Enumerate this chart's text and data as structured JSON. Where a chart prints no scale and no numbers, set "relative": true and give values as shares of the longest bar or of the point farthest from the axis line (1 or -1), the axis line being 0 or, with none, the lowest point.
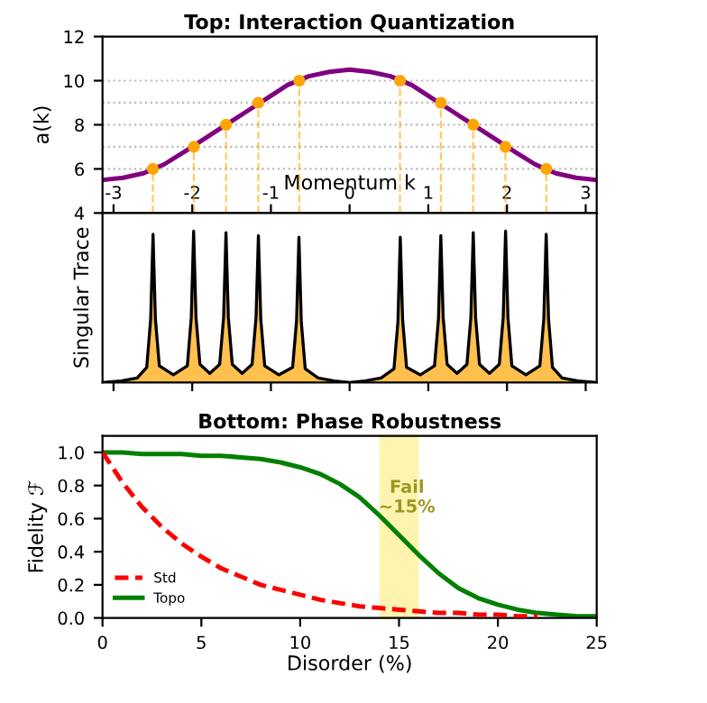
{
  "chart_data": [
    {
      "type": "line",
      "title": "Top: Interaction Quantization",
      "xlabel": "Momentum k",
      "ylabel": "a(k)",
      "xlim": [
        -3.14,
        3.14
      ],
      "xticks": [
        -3,
        -2,
        -1,
        0,
        1,
        2,
        3
      ],
      "ylim": [
        4,
        12
      ],
      "yticks": [
        4,
        6,
        8,
        10,
        12
      ],
      "ref_lines": [
        {
          "axis": "y",
          "value": 6,
          "color": "#bbbbbb",
          "line_style": "dotted"
        },
        {
          "axis": "y",
          "value": 7,
          "color": "#bbbbbb",
          "line_style": "dotted"
        },
        {
          "axis": "y",
          "value": 8,
          "color": "#bbbbbb",
          "line_style": "dotted"
        },
        {
          "axis": "y",
          "value": 9,
          "color": "#bbbbbb",
          "line_style": "dotted"
        },
        {
          "axis": "y",
          "value": 10,
          "color": "#bbbbbb",
          "line_style": "dotted"
        }
      ],
      "series": [
        {
          "color": "#800080",
          "x": [
            -3.14,
            -2.88,
            -2.62,
            -2.36,
            -2.09,
            -1.83,
            -1.57,
            -1.31,
            -1.05,
            -0.79,
            -0.52,
            -0.26,
            0,
            0.26,
            0.52,
            0.79,
            1.05,
            1.31,
            1.57,
            1.83,
            2.09,
            2.36,
            2.62,
            2.88,
            3.14
          ],
          "values": [
            5.5,
            5.6,
            5.8,
            6.2,
            6.8,
            7.4,
            8,
            8.6,
            9.2,
            9.8,
            10.2,
            10.4,
            10.5,
            10.4,
            10.2,
            9.8,
            9.2,
            8.6,
            8,
            7.4,
            6.8,
            6.2,
            5.8,
            5.6,
            5.5
          ]
        },
        {
          "type": "lollipop",
          "color": "#ffa500",
          "line_style": "dashed",
          "marker": "circle",
          "x": [
            -2.5,
            -1.98,
            -1.57,
            -1.16,
            -0.64,
            0.64,
            1.16,
            1.57,
            1.98,
            2.5
          ],
          "values": [
            6,
            7,
            8,
            9,
            10,
            10,
            9,
            8,
            7,
            6
          ]
        }
      ]
    },
    {
      "type": "area",
      "relative": true,
      "ylabel": "Singular Trace",
      "xlim": [
        -3.14,
        3.14
      ],
      "xticks": [
        -3,
        -2,
        -1,
        0,
        1,
        2,
        3
      ],
      "tick_labels": false,
      "series": [
        {
          "color": "#ffc04d",
          "x": [
            -3.14,
            -2.9,
            -2.7,
            -2.578,
            -2.528,
            -2.498,
            -2.468,
            -2.418,
            -2.24,
            -2.062,
            -2.012,
            -1.982,
            -1.952,
            -1.902,
            -1.777,
            -1.651,
            -1.601,
            -1.571,
            -1.541,
            -1.491,
            -1.365,
            -1.239,
            -1.189,
            -1.159,
            -1.129,
            -1.079,
            -0.9,
            -0.724,
            -0.674,
            -0.644,
            -0.614,
            -0.564,
            -0.4,
            -0.2,
            0,
            0.2,
            0.4,
            0.564,
            0.614,
            0.644,
            0.674,
            0.724,
            0.9,
            1.079,
            1.129,
            1.159,
            1.189,
            1.239,
            1.365,
            1.491,
            1.541,
            1.571,
            1.601,
            1.651,
            1.777,
            1.902,
            1.952,
            1.982,
            2.012,
            2.062,
            2.24,
            2.418,
            2.468,
            2.498,
            2.528,
            2.578,
            2.7,
            2.9,
            3.14
          ],
          "values": [
            0.0,
            0.01,
            0.03,
            0.1,
            0.42,
            0.98,
            0.42,
            0.11,
            0.05,
            0.11,
            0.43,
            1.0,
            0.43,
            0.12,
            0.06,
            0.12,
            0.43,
            0.99,
            0.43,
            0.12,
            0.06,
            0.12,
            0.43,
            0.97,
            0.42,
            0.11,
            0.05,
            0.1,
            0.41,
            0.96,
            0.4,
            0.09,
            0.03,
            0.01,
            0.0,
            0.01,
            0.03,
            0.09,
            0.4,
            0.96,
            0.41,
            0.1,
            0.05,
            0.11,
            0.42,
            0.97,
            0.43,
            0.12,
            0.06,
            0.12,
            0.43,
            0.99,
            0.43,
            0.12,
            0.06,
            0.12,
            0.43,
            1.0,
            0.43,
            0.11,
            0.05,
            0.11,
            0.42,
            0.98,
            0.42,
            0.1,
            0.03,
            0.01,
            0.0
          ]
        }
      ]
    },
    {
      "type": "line",
      "title": "Bottom: Phase Robustness",
      "xlabel": "Disorder (%)",
      "ylabel": "Fidelity ℱ",
      "xlim": [
        0,
        25
      ],
      "xticks": [
        0,
        5,
        10,
        15,
        20,
        25
      ],
      "ylim": [
        0,
        1.1
      ],
      "yticks": [
        {
          "value": 0,
          "label": "0.0"
        },
        0.2,
        0.4,
        0.6,
        0.8,
        {
          "value": 1,
          "label": "1.0"
        }
      ],
      "legend": "bottom left",
      "bands": [
        {
          "axis": "x",
          "from": 14,
          "to": 16,
          "color": "#fff3b0",
          "label": "Fail\n~15%"
        }
      ],
      "series": [
        {
          "name": "Std",
          "color": "#ff0000",
          "line_style": "dashed",
          "x": [
            0,
            1,
            2,
            3,
            4,
            5,
            6,
            7,
            8,
            9,
            10,
            11,
            12,
            13,
            14,
            15,
            16,
            17,
            18,
            19,
            20,
            21,
            22
          ],
          "values": [
            1.0,
            0.82,
            0.67,
            0.55,
            0.45,
            0.37,
            0.3,
            0.25,
            0.2,
            0.17,
            0.14,
            0.11,
            0.09,
            0.07,
            0.06,
            0.05,
            0.04,
            0.03,
            0.03,
            0.02,
            0.02,
            0.01,
            0.01
          ]
        },
        {
          "name": "Topo",
          "color": "#008000",
          "line_style": "solid",
          "x": [
            0,
            1,
            2,
            3,
            4,
            5,
            6,
            7,
            8,
            9,
            10,
            11,
            12,
            13,
            14,
            15,
            16,
            17,
            18,
            19,
            20,
            21,
            22,
            23,
            24,
            25
          ],
          "values": [
            1.0,
            1.0,
            0.99,
            0.99,
            0.99,
            0.98,
            0.98,
            0.97,
            0.96,
            0.94,
            0.91,
            0.87,
            0.81,
            0.73,
            0.62,
            0.5,
            0.38,
            0.27,
            0.18,
            0.12,
            0.08,
            0.05,
            0.03,
            0.02,
            0.01,
            0.01
          ]
        }
      ]
    }
  ]
}
